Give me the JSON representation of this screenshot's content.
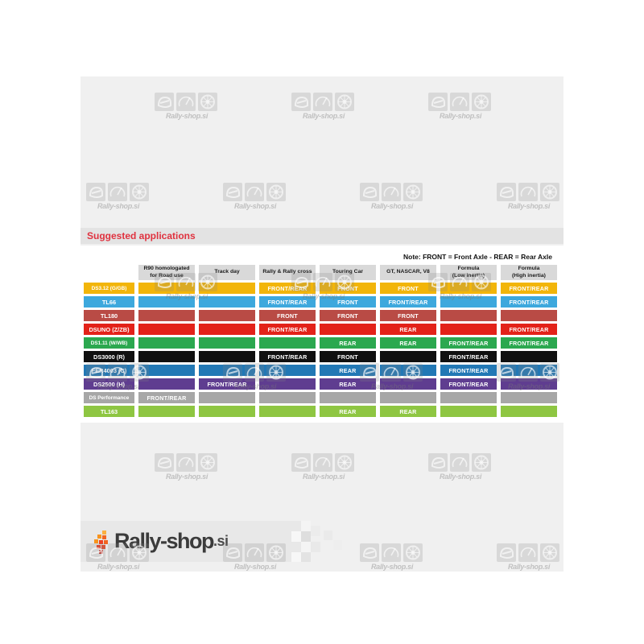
{
  "heading": "Suggested applications",
  "watermark": {
    "text": "Rally-shop.si",
    "icon_names": [
      "helmet-icon",
      "gauge-icon",
      "wheel-icon"
    ]
  },
  "footer_logo": {
    "brand": "Rally-shop",
    "tld": ".si"
  },
  "colors": {
    "panel_bg": "#f0f0f0",
    "heading_bar": "#e3e3e3",
    "heading_text": "#e0323f",
    "header_cell": "#d9d9d9",
    "footer_bar": "#e8e8e8"
  },
  "chart_data": {
    "type": "table",
    "title": "Suggested applications",
    "note": "Note: FRONT = Front Axle - REAR = Rear Axle",
    "columns": [
      "R90 homologated\nfor Road use",
      "Track day",
      "Rally & Rally cross",
      "Touring Car",
      "GT, NASCAR, V8",
      "Formula\n(Low inertia)",
      "Formula\n(High inertia)"
    ],
    "rows": [
      {
        "compound": "DS3.12 (G/GB)",
        "color": "#F2B50A",
        "cells": [
          "",
          "",
          "FRONT/REAR",
          "FRONT",
          "FRONT",
          "",
          "FRONT/REAR"
        ]
      },
      {
        "compound": "TL66",
        "color": "#3DA8DD",
        "cells": [
          "",
          "",
          "FRONT/REAR",
          "FRONT",
          "FRONT/REAR",
          "",
          "FRONT/REAR"
        ]
      },
      {
        "compound": "TL180",
        "color": "#B94B45",
        "cells": [
          "",
          "",
          "FRONT",
          "FRONT",
          "FRONT",
          "",
          ""
        ]
      },
      {
        "compound": "DSUNO (Z/ZB)",
        "color": "#E32219",
        "cells": [
          "",
          "",
          "FRONT/REAR",
          "",
          "REAR",
          "",
          "FRONT/REAR"
        ]
      },
      {
        "compound": "DS1.11 (W/WB)",
        "color": "#2BA84F",
        "cells": [
          "",
          "",
          "",
          "REAR",
          "REAR",
          "FRONT/REAR",
          "FRONT/REAR"
        ]
      },
      {
        "compound": "DS3000 (R)",
        "color": "#101010",
        "cells": [
          "",
          "",
          "FRONT/REAR",
          "FRONT",
          "",
          "FRONT/REAR",
          ""
        ]
      },
      {
        "compound": "FER4003 (C)",
        "color": "#2278B5",
        "cells": [
          "",
          "",
          "",
          "REAR",
          "",
          "FRONT/REAR",
          ""
        ]
      },
      {
        "compound": "DS2500 (H)",
        "color": "#5F3D90",
        "cells": [
          "",
          "FRONT/REAR",
          "",
          "REAR",
          "",
          "FRONT/REAR",
          ""
        ]
      },
      {
        "compound": "DS Performance",
        "color": "#A7A7A7",
        "cells": [
          "FRONT/REAR",
          "",
          "",
          "",
          "",
          "",
          ""
        ]
      },
      {
        "compound": "TL163",
        "color": "#8EC642",
        "cells": [
          "",
          "",
          "",
          "REAR",
          "REAR",
          "",
          ""
        ]
      }
    ]
  }
}
